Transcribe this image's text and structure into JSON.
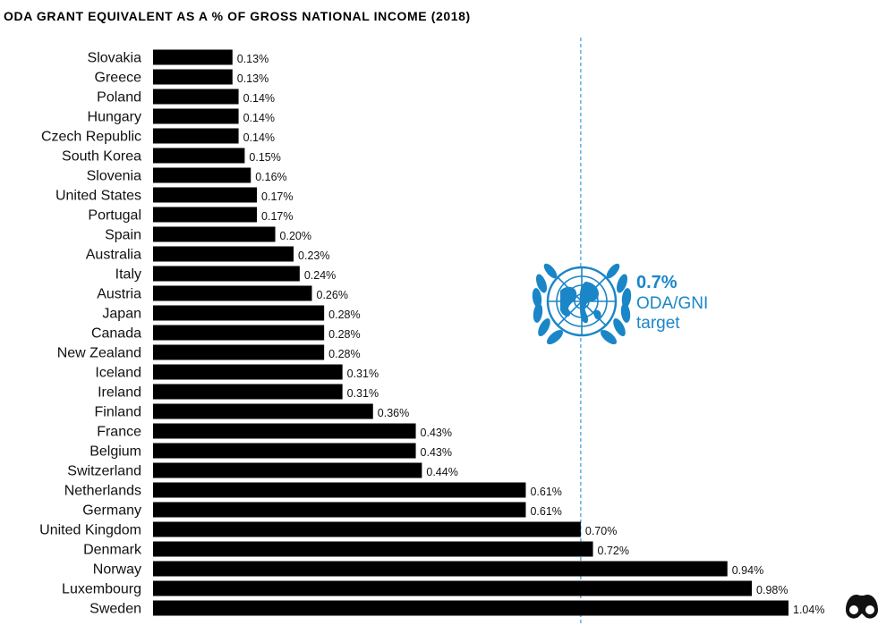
{
  "chart_data": {
    "type": "bar",
    "orientation": "horizontal",
    "title": "ODA GRANT EQUIVALENT AS A % OF GROSS NATIONAL INCOME (2018)",
    "categories": [
      "Slovakia",
      "Greece",
      "Poland",
      "Hungary",
      "Czech Republic",
      "South Korea",
      "Slovenia",
      "United States",
      "Portugal",
      "Spain",
      "Australia",
      "Italy",
      "Austria",
      "Japan",
      "Canada",
      "New Zealand",
      "Iceland",
      "Ireland",
      "Finland",
      "France",
      "Belgium",
      "Switzerland",
      "Netherlands",
      "Germany",
      "United Kingdom",
      "Denmark",
      "Norway",
      "Luxembourg",
      "Sweden"
    ],
    "values": [
      0.13,
      0.13,
      0.14,
      0.14,
      0.14,
      0.15,
      0.16,
      0.17,
      0.17,
      0.2,
      0.23,
      0.24,
      0.26,
      0.28,
      0.28,
      0.28,
      0.31,
      0.31,
      0.36,
      0.43,
      0.43,
      0.44,
      0.61,
      0.61,
      0.7,
      0.72,
      0.94,
      0.98,
      1.04
    ],
    "value_labels": [
      "0.13%",
      "0.13%",
      "0.14%",
      "0.14%",
      "0.14%",
      "0.15%",
      "0.16%",
      "0.17%",
      "0.17%",
      "0.20%",
      "0.23%",
      "0.24%",
      "0.26%",
      "0.28%",
      "0.28%",
      "0.28%",
      "0.31%",
      "0.31%",
      "0.36%",
      "0.43%",
      "0.43%",
      "0.44%",
      "0.61%",
      "0.61%",
      "0.70%",
      "0.72%",
      "0.94%",
      "0.98%",
      "1.04%"
    ],
    "xlim": [
      0,
      1.06
    ],
    "grid": false,
    "bar_color": "#000000",
    "reference_line": {
      "value": 0.7,
      "style": "dashed",
      "color": "#3a9bd5",
      "label_value": "0.7%",
      "label_line1": "ODA/GNI",
      "label_line2": "target",
      "icon": "un-emblem-icon"
    }
  },
  "branding": {
    "logo_icon": "binoculars-logo-icon"
  },
  "colors": {
    "accent": "#1a86c8",
    "bar": "#000000",
    "text": "#111111"
  }
}
